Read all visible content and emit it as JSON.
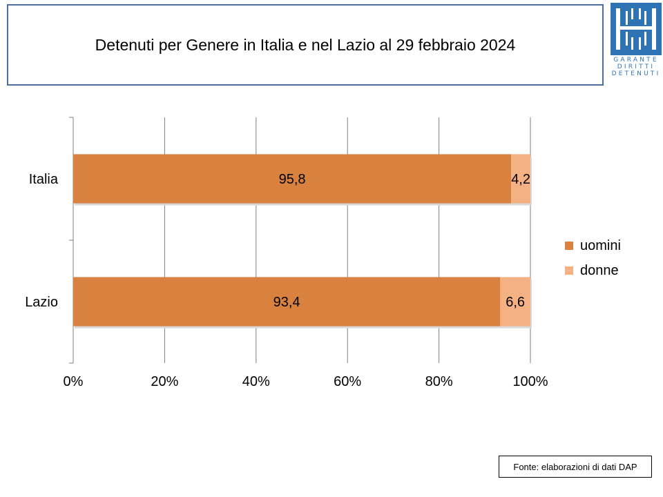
{
  "title": "Detenuti per Genere in Italia e nel Lazio al 29 febbraio 2024",
  "logo": {
    "icon": "garante-logo-icon",
    "color": "#2e74b5",
    "lines": [
      "GARANTE",
      "DIRITTI",
      "DETENUTI"
    ]
  },
  "source": "Fonte: elaborazioni di dati DAP",
  "chart_data": {
    "type": "bar",
    "orientation": "horizontal",
    "stacked": "percent",
    "categories": [
      "Italia",
      "Lazio"
    ],
    "series": [
      {
        "name": "uomini",
        "values": [
          95.8,
          93.4
        ],
        "labels": [
          "95,8",
          "93,4"
        ],
        "color": "#d9823f"
      },
      {
        "name": "donne",
        "values": [
          4.2,
          6.6
        ],
        "labels": [
          "4,2",
          "6,6"
        ],
        "color": "#f4b183"
      }
    ],
    "x_ticks": [
      "0%",
      "20%",
      "40%",
      "60%",
      "80%",
      "100%"
    ],
    "xlim": [
      0,
      100
    ],
    "grid": true,
    "legend": "right"
  }
}
